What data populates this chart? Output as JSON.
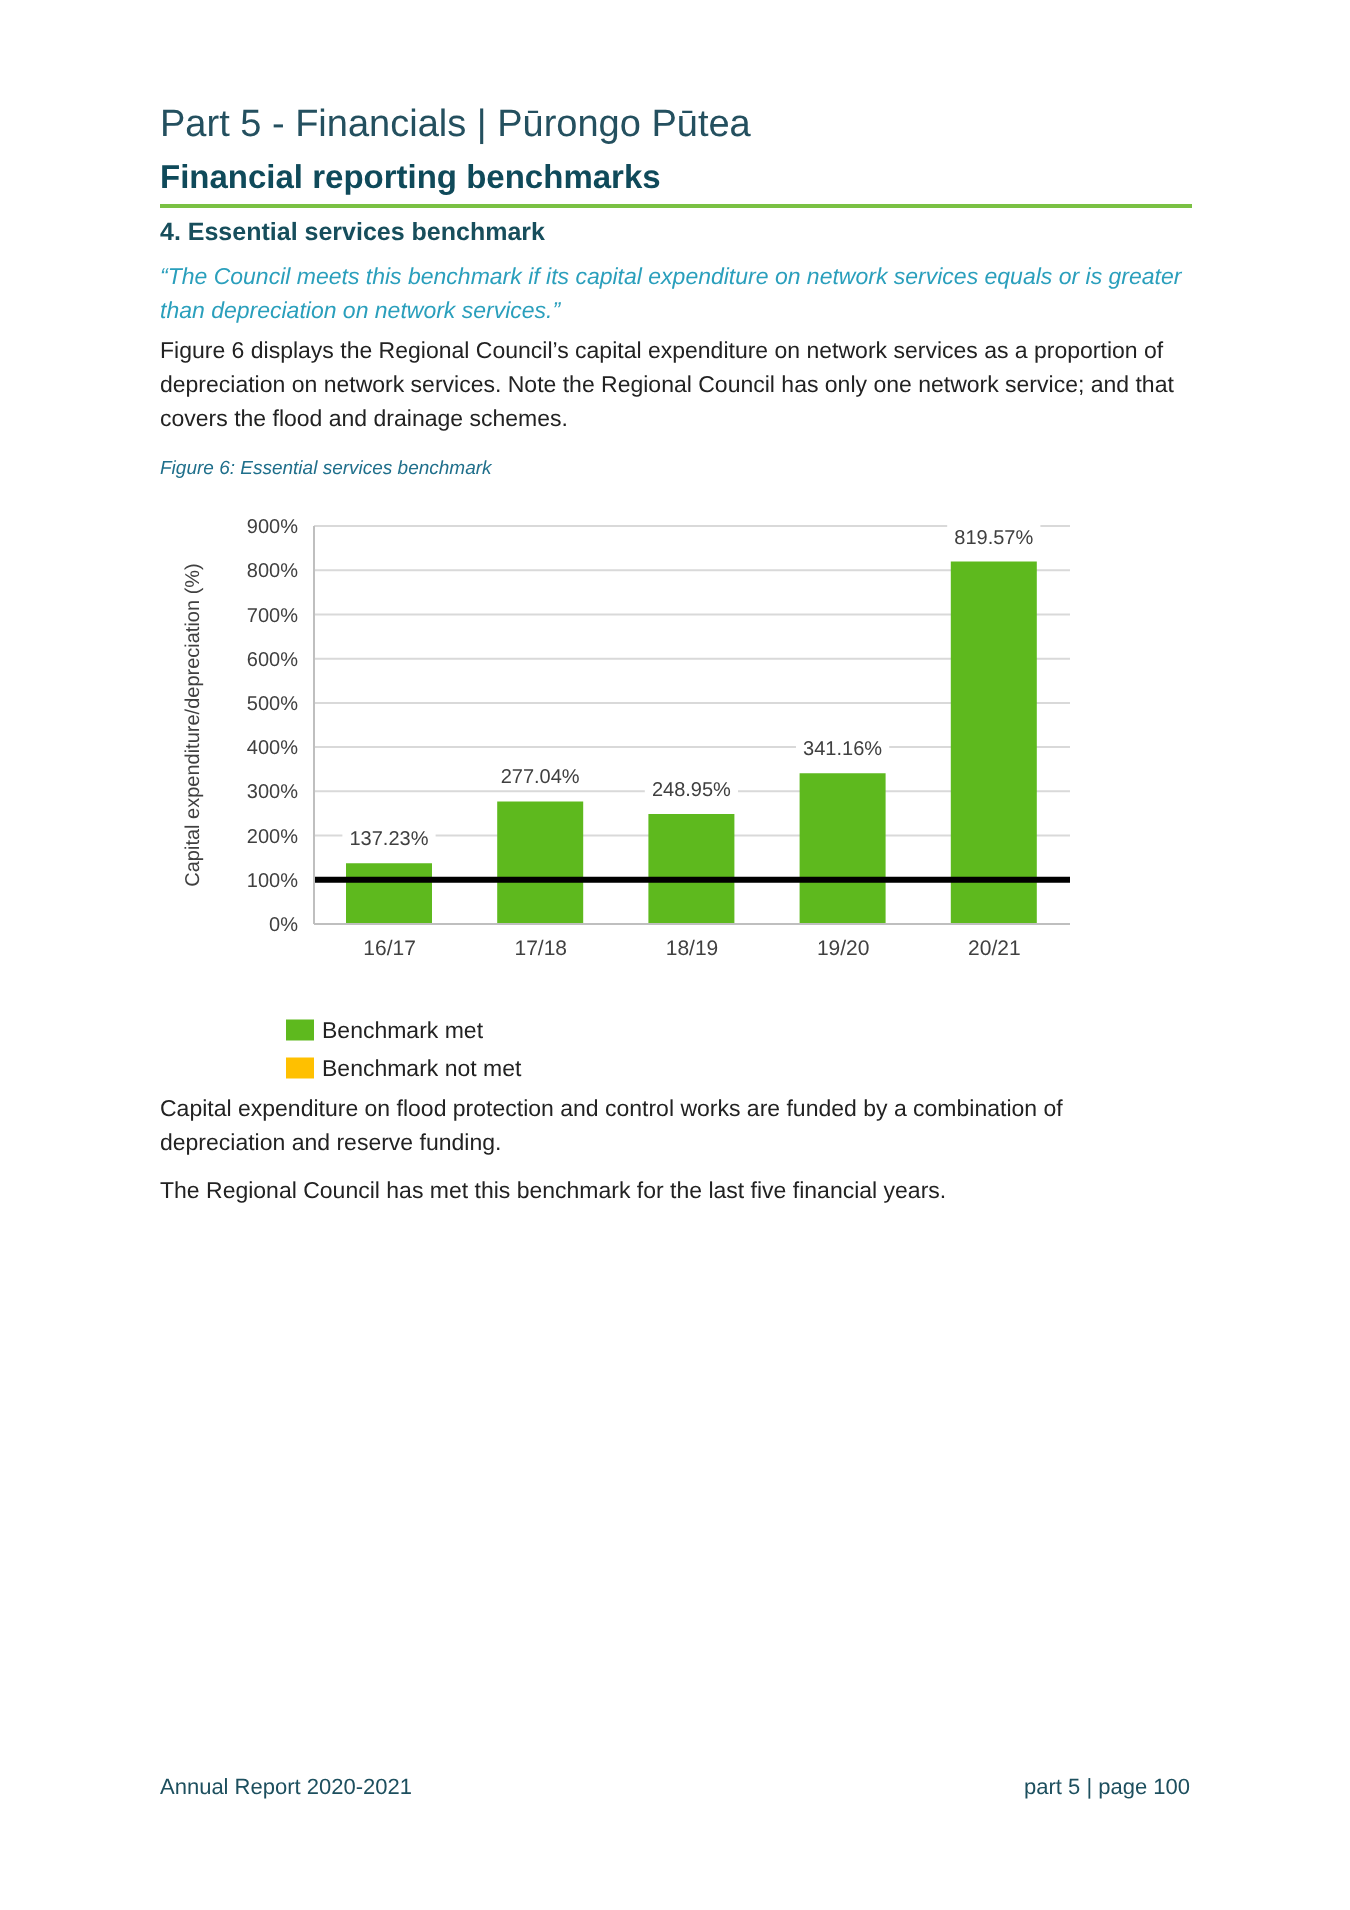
{
  "chart_data": {
    "type": "bar",
    "title": "Part 5 - Financials | Pūrongo Pūtea",
    "subtitle": "Financial reporting benchmarks",
    "ylabel": "Capital expenditure/depreciation (%)",
    "categories": [
      "16/17",
      "17/18",
      "18/19",
      "19/20",
      "20/21"
    ],
    "series": [
      {
        "name": "Benchmark met",
        "color": "#5eb91e",
        "values": [
          137.23,
          277.04,
          248.95,
          341.16,
          819.57
        ],
        "value_labels": [
          "137.23%",
          "277.04%",
          "248.95%",
          "341.16%",
          "819.57%"
        ]
      },
      {
        "name": "Benchmark not met",
        "color": "#ffc000",
        "values": [
          null,
          null,
          null,
          null,
          null
        ]
      }
    ],
    "ylim": [
      0,
      900
    ],
    "yticks": [
      {
        "value": 0,
        "label": "0%"
      },
      {
        "value": 100,
        "label": "100%"
      },
      {
        "value": 200,
        "label": "200%"
      },
      {
        "value": 300,
        "label": "300%"
      },
      {
        "value": 400,
        "label": "400%"
      },
      {
        "value": 500,
        "label": "500%"
      },
      {
        "value": 600,
        "label": "600%"
      },
      {
        "value": 700,
        "label": "700%"
      },
      {
        "value": 800,
        "label": "800%"
      },
      {
        "value": 900,
        "label": "900%"
      }
    ],
    "grid": "y",
    "legend": "bottom",
    "ref_lines": [
      {
        "axis": "y",
        "value": 100,
        "color": "#000000"
      }
    ],
    "annotations": [
      "4. Essential services benchmark",
      "“The Council meets this benchmark if its capital expenditure on network services equals or is greater than depreciation on network services.”",
      "Figure 6 displays the Regional Council’s capital expenditure on network services as a proportion of depreciation on network services. Note the Regional Council has only one network service; and that covers the flood and drainage schemes.",
      "Figure 6: Essential services benchmark",
      "Capital expenditure on flood protection and control works are funded by a combination of depreciation and reserve funding.",
      "The Regional Council has met this benchmark for the last five financial years.",
      "Annual Report 2020-2021",
      "part 5 | page 100"
    ]
  }
}
